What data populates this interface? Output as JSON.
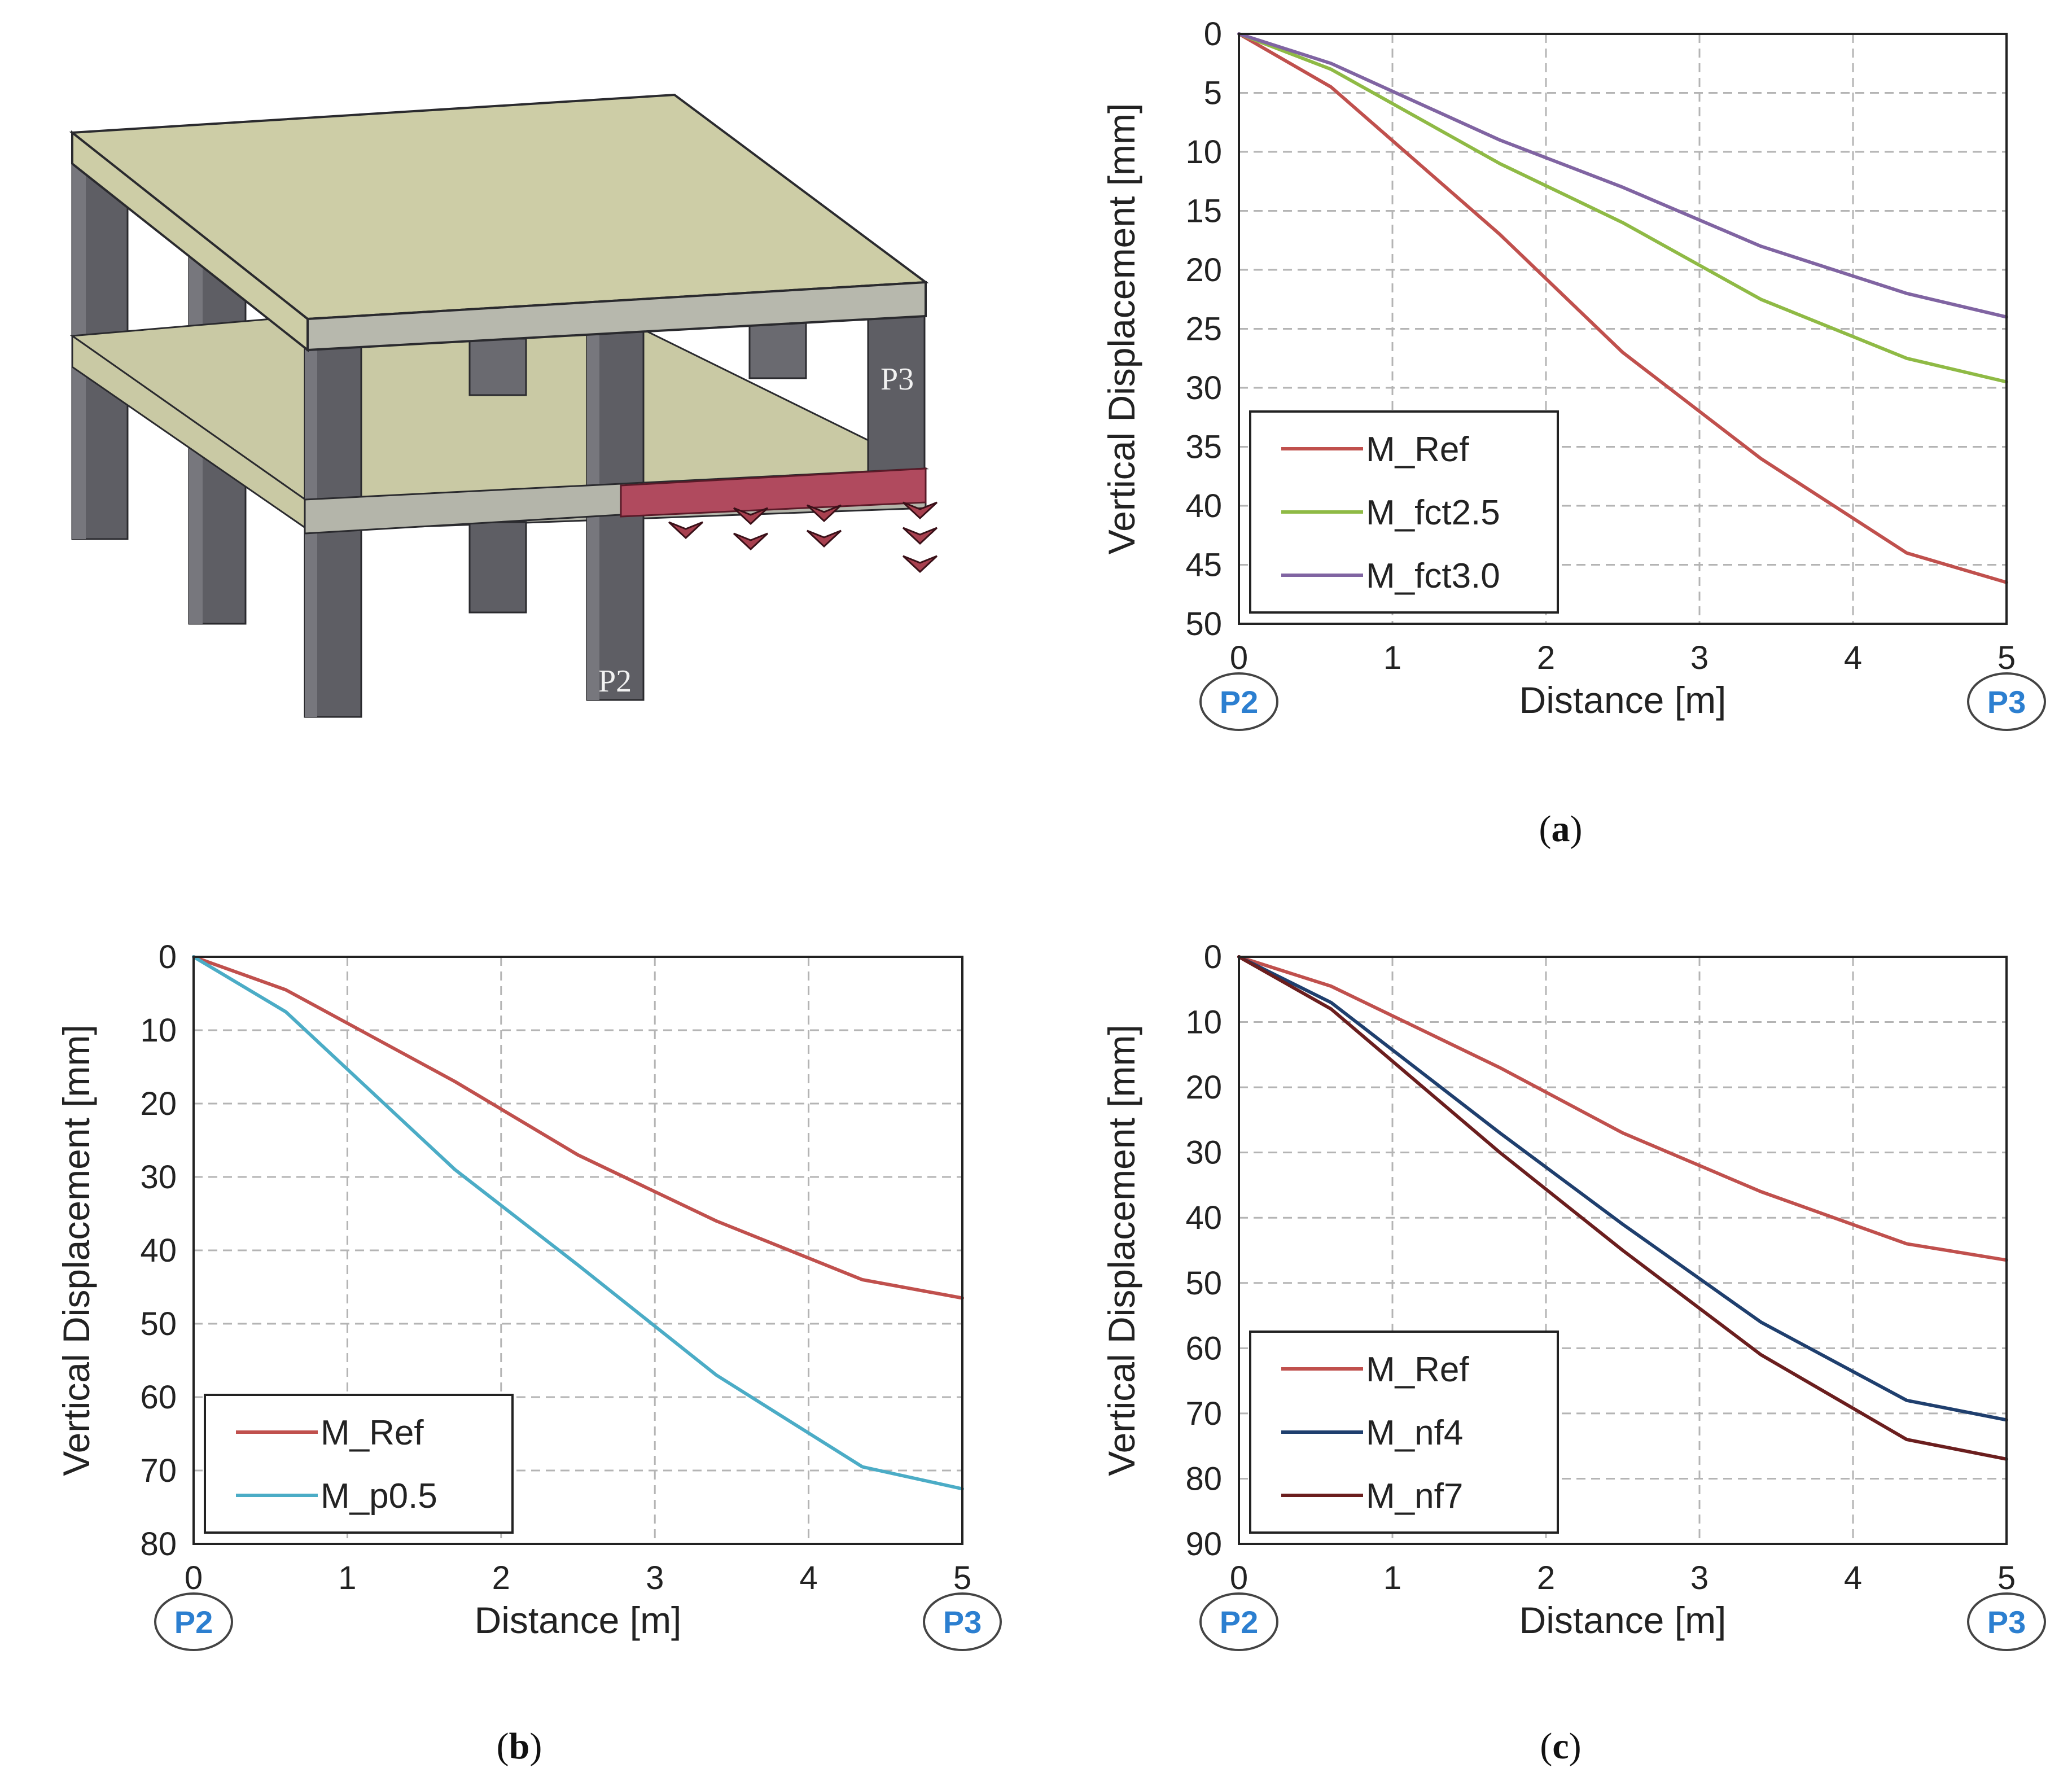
{
  "illustration": {
    "labels": [
      "P3",
      "P2"
    ]
  },
  "chart_data": [
    {
      "id": "a",
      "type": "line",
      "caption": "a",
      "caption_open": "(",
      "caption_close": ")",
      "xlabel": "Distance [m]",
      "ylabel": "Vertical Displacement [mm]",
      "xlim": [
        0,
        5
      ],
      "ylim": [
        0,
        50
      ],
      "y_inverted": true,
      "xticks": [
        0,
        1,
        2,
        3,
        4,
        5
      ],
      "yticks": [
        0,
        5,
        10,
        15,
        20,
        25,
        30,
        35,
        40,
        45,
        50
      ],
      "grid": true,
      "legend_position": "bottom-left",
      "start_marker": "P2",
      "end_marker": "P3",
      "series": [
        {
          "name": "M_Ref",
          "color": "#c0504d",
          "x": [
            0,
            0.6,
            1.7,
            2.5,
            3.4,
            4.35,
            5.0
          ],
          "y": [
            0,
            4.5,
            17,
            27,
            36,
            44,
            46.5
          ]
        },
        {
          "name": "M_fct2.5",
          "color": "#8fba45",
          "x": [
            0,
            0.6,
            1.7,
            2.5,
            3.4,
            4.35,
            5.0
          ],
          "y": [
            0,
            3,
            11,
            16,
            22.5,
            27.5,
            29.5
          ]
        },
        {
          "name": "M_fct3.0",
          "color": "#8064a2",
          "x": [
            0,
            0.6,
            1.7,
            2.5,
            3.4,
            4.35,
            5.0
          ],
          "y": [
            0,
            2.5,
            9,
            13,
            18,
            22,
            24
          ]
        }
      ]
    },
    {
      "id": "b",
      "type": "line",
      "caption": "b",
      "caption_open": "(",
      "caption_close": ")",
      "xlabel": "Distance [m]",
      "ylabel": "Vertical Displacement [mm]",
      "xlim": [
        0,
        5
      ],
      "ylim": [
        0,
        80
      ],
      "y_inverted": true,
      "xticks": [
        0,
        1,
        2,
        3,
        4,
        5
      ],
      "yticks": [
        0,
        10,
        20,
        30,
        40,
        50,
        60,
        70,
        80
      ],
      "grid": true,
      "legend_position": "bottom-left",
      "start_marker": "P2",
      "end_marker": "P3",
      "series": [
        {
          "name": "M_Ref",
          "color": "#c0504d",
          "x": [
            0,
            0.6,
            1.7,
            2.5,
            3.4,
            4.35,
            5.0
          ],
          "y": [
            0,
            4.5,
            17,
            27,
            36,
            44,
            46.5
          ]
        },
        {
          "name": "M_p0.5",
          "color": "#4bacc6",
          "x": [
            0,
            0.6,
            1.7,
            2.5,
            3.4,
            4.35,
            5.0
          ],
          "y": [
            0,
            7.5,
            29,
            42,
            57,
            69.5,
            72.5
          ]
        }
      ]
    },
    {
      "id": "c",
      "type": "line",
      "caption": "c",
      "caption_open": "(",
      "caption_close": ")",
      "xlabel": "Distance [m]",
      "ylabel": "Vertical Displacement [mm]",
      "xlim": [
        0,
        5
      ],
      "ylim": [
        0,
        90
      ],
      "y_inverted": true,
      "xticks": [
        0,
        1,
        2,
        3,
        4,
        5
      ],
      "yticks": [
        0,
        10,
        20,
        30,
        40,
        50,
        60,
        70,
        80,
        90
      ],
      "grid": true,
      "legend_position": "bottom-left",
      "start_marker": "P2",
      "end_marker": "P3",
      "series": [
        {
          "name": "M_Ref",
          "color": "#c0504d",
          "x": [
            0,
            0.6,
            1.7,
            2.5,
            3.4,
            4.35,
            5.0
          ],
          "y": [
            0,
            4.5,
            17,
            27,
            36,
            44,
            46.5
          ]
        },
        {
          "name": "M_nf4",
          "color": "#1f3f6e",
          "x": [
            0,
            0.6,
            1.7,
            2.5,
            3.4,
            4.35,
            5.0
          ],
          "y": [
            0,
            7,
            27,
            41,
            56,
            68,
            71
          ]
        },
        {
          "name": "M_nf7",
          "color": "#6b1e1e",
          "x": [
            0,
            0.6,
            1.7,
            2.5,
            3.4,
            4.35,
            5.0
          ],
          "y": [
            0,
            8,
            30,
            45,
            61,
            74,
            77
          ]
        }
      ]
    }
  ]
}
